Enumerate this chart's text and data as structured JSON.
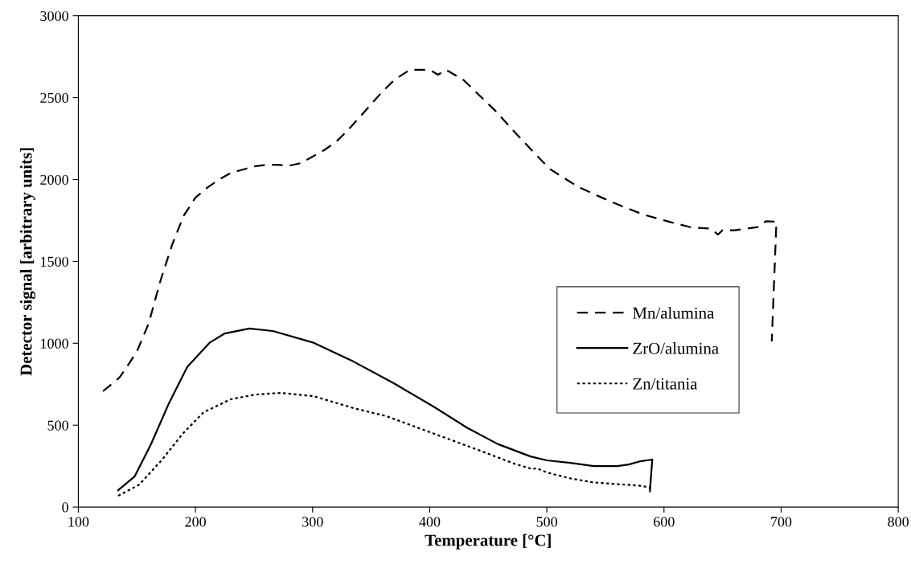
{
  "chart_data": {
    "type": "line",
    "xlabel": "Temperature [°C]",
    "ylabel": "Detector signal [arbitrary units]",
    "xlim": [
      100,
      800
    ],
    "xticks": [
      100,
      200,
      300,
      400,
      500,
      600,
      700,
      800
    ],
    "ylim": [
      0,
      3000
    ],
    "yticks": [
      0,
      500,
      1000,
      1500,
      2000,
      2500,
      3000
    ],
    "grid": false,
    "legend": "center right",
    "marker": "none",
    "series": [
      {
        "name": "Mn/alumina",
        "color": "#000000",
        "line_style": "dashed",
        "x": [
          121,
          130,
          135,
          140,
          150,
          160,
          165,
          170,
          180,
          190,
          200,
          210,
          220,
          230,
          240,
          250,
          260,
          270,
          280,
          290,
          300,
          310,
          320,
          330,
          340,
          350,
          360,
          370,
          383,
          400,
          407,
          414,
          429,
          456,
          474,
          502,
          527,
          556,
          582,
          604,
          623,
          640,
          646,
          650,
          660,
          670,
          680,
          687,
          696,
          692
        ],
        "values": [
          707,
          760,
          790,
          840,
          950,
          1120,
          1250,
          1380,
          1600,
          1780,
          1890,
          1950,
          2000,
          2040,
          2060,
          2080,
          2090,
          2090,
          2085,
          2100,
          2140,
          2180,
          2230,
          2300,
          2380,
          2460,
          2540,
          2610,
          2670,
          2670,
          2640,
          2670,
          2607,
          2420,
          2278,
          2067,
          1954,
          1861,
          1787,
          1743,
          1708,
          1700,
          1664,
          1690,
          1690,
          1700,
          1710,
          1745,
          1743,
          1011
        ]
      },
      {
        "name": "ZrO/alumina",
        "color": "#000000",
        "line_style": "solid",
        "x": [
          134,
          148,
          162,
          177,
          193,
          212,
          225,
          246,
          266,
          301,
          335,
          369,
          404,
          432,
          458,
          486,
          500,
          520,
          540,
          560,
          570,
          580,
          590,
          588
        ],
        "values": [
          103,
          186,
          383,
          628,
          855,
          1003,
          1060,
          1090,
          1075,
          1003,
          888,
          757,
          610,
          484,
          385,
          309,
          285,
          270,
          250,
          250,
          260,
          280,
          290,
          100
        ]
      },
      {
        "name": "Zn/titania",
        "color": "#000000",
        "line_style": "dotted",
        "x": [
          134,
          152,
          171,
          189,
          207,
          230,
          251,
          273,
          301,
          335,
          363,
          404,
          445,
          472,
          488,
          491,
          500,
          520,
          540,
          560,
          580,
          588,
          588
        ],
        "values": [
          69,
          137,
          285,
          447,
          579,
          658,
          687,
          697,
          677,
          604,
          555,
          447,
          339,
          265,
          231,
          238,
          211,
          175,
          150,
          140,
          130,
          120,
          90
        ]
      }
    ]
  }
}
